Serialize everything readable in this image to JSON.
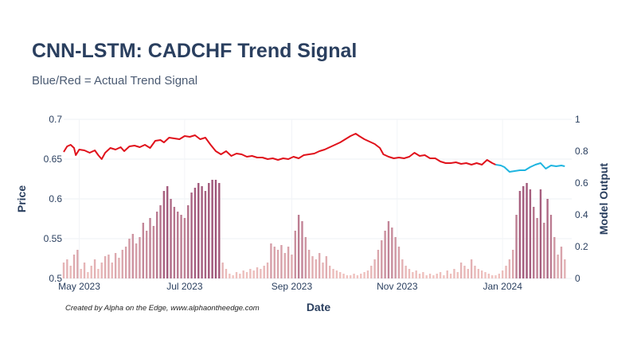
{
  "chart_data": {
    "type": "line",
    "title": "CNN-LSTM: CADCHF Trend Signal",
    "subtitle": "Blue/Red = Actual Trend Signal",
    "credit": "Created by Alpha on the Edge, www.alphaontheedge.com",
    "xlabel": "Date",
    "ylabel": "Price",
    "y2label": "Model Output",
    "x_range": [
      "2023-04-22",
      "2024-02-10"
    ],
    "ylim": [
      0.5,
      0.7
    ],
    "y2lim": [
      0,
      1
    ],
    "x_ticks": [
      {
        "date": "2023-05-01",
        "label": "May 2023"
      },
      {
        "date": "2023-07-01",
        "label": "Jul 2023"
      },
      {
        "date": "2023-09-01",
        "label": "Sep 2023"
      },
      {
        "date": "2023-11-01",
        "label": "Nov 2023"
      },
      {
        "date": "2024-01-01",
        "label": "Jan 2024"
      }
    ],
    "y_ticks": [
      "0.5",
      "0.55",
      "0.6",
      "0.65",
      "0.7"
    ],
    "y2_ticks": [
      "0",
      "0.2",
      "0.4",
      "0.6",
      "0.8",
      "1"
    ],
    "grid": true,
    "colors": {
      "down": "#e0111b",
      "up": "#1fb5e0",
      "bar_low": "#f3c7c2",
      "bar_high": "#9e5478",
      "text": "#2a3f5f"
    },
    "price_series": {
      "points": [
        [
          "2023-04-22",
          0.659
        ],
        [
          "2023-04-24",
          0.666
        ],
        [
          "2023-04-26",
          0.668
        ],
        [
          "2023-04-28",
          0.664
        ],
        [
          "2023-04-29",
          0.655
        ],
        [
          "2023-05-01",
          0.662
        ],
        [
          "2023-05-04",
          0.661
        ],
        [
          "2023-05-07",
          0.658
        ],
        [
          "2023-05-10",
          0.661
        ],
        [
          "2023-05-12",
          0.655
        ],
        [
          "2023-05-14",
          0.65
        ],
        [
          "2023-05-16",
          0.658
        ],
        [
          "2023-05-19",
          0.664
        ],
        [
          "2023-05-22",
          0.662
        ],
        [
          "2023-05-25",
          0.665
        ],
        [
          "2023-05-27",
          0.66
        ],
        [
          "2023-05-30",
          0.666
        ],
        [
          "2023-06-02",
          0.667
        ],
        [
          "2023-06-05",
          0.665
        ],
        [
          "2023-06-08",
          0.668
        ],
        [
          "2023-06-11",
          0.664
        ],
        [
          "2023-06-14",
          0.673
        ],
        [
          "2023-06-17",
          0.674
        ],
        [
          "2023-06-19",
          0.671
        ],
        [
          "2023-06-22",
          0.677
        ],
        [
          "2023-06-25",
          0.676
        ],
        [
          "2023-06-28",
          0.675
        ],
        [
          "2023-07-01",
          0.679
        ],
        [
          "2023-07-04",
          0.678
        ],
        [
          "2023-07-07",
          0.68
        ],
        [
          "2023-07-10",
          0.675
        ],
        [
          "2023-07-13",
          0.677
        ],
        [
          "2023-07-16",
          0.668
        ],
        [
          "2023-07-19",
          0.66
        ],
        [
          "2023-07-22",
          0.656
        ],
        [
          "2023-07-25",
          0.66
        ],
        [
          "2023-07-28",
          0.654
        ],
        [
          "2023-07-31",
          0.657
        ],
        [
          "2023-08-03",
          0.656
        ],
        [
          "2023-08-06",
          0.653
        ],
        [
          "2023-08-09",
          0.654
        ],
        [
          "2023-08-12",
          0.652
        ],
        [
          "2023-08-15",
          0.652
        ],
        [
          "2023-08-18",
          0.65
        ],
        [
          "2023-08-21",
          0.651
        ],
        [
          "2023-08-24",
          0.649
        ],
        [
          "2023-08-27",
          0.651
        ],
        [
          "2023-08-30",
          0.65
        ],
        [
          "2023-09-02",
          0.653
        ],
        [
          "2023-09-05",
          0.651
        ],
        [
          "2023-09-08",
          0.655
        ],
        [
          "2023-09-11",
          0.656
        ],
        [
          "2023-09-14",
          0.657
        ],
        [
          "2023-09-17",
          0.66
        ],
        [
          "2023-09-20",
          0.662
        ],
        [
          "2023-09-23",
          0.665
        ],
        [
          "2023-09-26",
          0.668
        ],
        [
          "2023-09-29",
          0.671
        ],
        [
          "2023-10-02",
          0.675
        ],
        [
          "2023-10-05",
          0.679
        ],
        [
          "2023-10-08",
          0.682
        ],
        [
          "2023-10-10",
          0.679
        ],
        [
          "2023-10-13",
          0.675
        ],
        [
          "2023-10-16",
          0.672
        ],
        [
          "2023-10-19",
          0.669
        ],
        [
          "2023-10-22",
          0.664
        ],
        [
          "2023-10-24",
          0.656
        ],
        [
          "2023-10-27",
          0.653
        ],
        [
          "2023-10-30",
          0.651
        ],
        [
          "2023-11-02",
          0.652
        ],
        [
          "2023-11-05",
          0.651
        ],
        [
          "2023-11-08",
          0.653
        ],
        [
          "2023-11-11",
          0.658
        ],
        [
          "2023-11-14",
          0.654
        ],
        [
          "2023-11-17",
          0.655
        ],
        [
          "2023-11-20",
          0.651
        ],
        [
          "2023-11-23",
          0.651
        ],
        [
          "2023-11-26",
          0.647
        ],
        [
          "2023-11-29",
          0.645
        ],
        [
          "2023-12-02",
          0.645
        ],
        [
          "2023-12-05",
          0.646
        ],
        [
          "2023-12-08",
          0.644
        ],
        [
          "2023-12-11",
          0.645
        ],
        [
          "2023-12-14",
          0.643
        ],
        [
          "2023-12-17",
          0.645
        ],
        [
          "2023-12-20",
          0.643
        ],
        [
          "2023-12-23",
          0.649
        ],
        [
          "2023-12-26",
          0.645
        ],
        [
          "2023-12-28",
          0.643
        ],
        [
          "2023-12-31",
          0.642
        ],
        [
          "2024-01-02",
          0.64
        ],
        [
          "2024-01-05",
          0.634
        ],
        [
          "2024-01-08",
          0.635
        ],
        [
          "2024-01-11",
          0.636
        ],
        [
          "2024-01-14",
          0.636
        ],
        [
          "2024-01-17",
          0.64
        ],
        [
          "2024-01-20",
          0.643
        ],
        [
          "2024-01-23",
          0.645
        ],
        [
          "2024-01-26",
          0.638
        ],
        [
          "2024-01-29",
          0.642
        ],
        [
          "2024-02-01",
          0.641
        ],
        [
          "2024-02-04",
          0.642
        ],
        [
          "2024-02-06",
          0.641
        ]
      ],
      "signal_change_date": "2023-12-30"
    },
    "model_output_bars": [
      [
        "2023-04-22",
        0.1
      ],
      [
        "2023-04-24",
        0.12
      ],
      [
        "2023-04-26",
        0.08
      ],
      [
        "2023-04-28",
        0.15
      ],
      [
        "2023-04-30",
        0.18
      ],
      [
        "2023-05-02",
        0.06
      ],
      [
        "2023-05-04",
        0.1
      ],
      [
        "2023-05-06",
        0.04
      ],
      [
        "2023-05-08",
        0.08
      ],
      [
        "2023-05-10",
        0.12
      ],
      [
        "2023-05-12",
        0.06
      ],
      [
        "2023-05-14",
        0.1
      ],
      [
        "2023-05-16",
        0.14
      ],
      [
        "2023-05-18",
        0.15
      ],
      [
        "2023-05-20",
        0.1
      ],
      [
        "2023-05-22",
        0.16
      ],
      [
        "2023-05-24",
        0.13
      ],
      [
        "2023-05-26",
        0.18
      ],
      [
        "2023-05-28",
        0.2
      ],
      [
        "2023-05-30",
        0.25
      ],
      [
        "2023-06-01",
        0.28
      ],
      [
        "2023-06-03",
        0.22
      ],
      [
        "2023-06-05",
        0.26
      ],
      [
        "2023-06-07",
        0.35
      ],
      [
        "2023-06-09",
        0.3
      ],
      [
        "2023-06-11",
        0.38
      ],
      [
        "2023-06-13",
        0.33
      ],
      [
        "2023-06-15",
        0.42
      ],
      [
        "2023-06-17",
        0.46
      ],
      [
        "2023-06-19",
        0.55
      ],
      [
        "2023-06-21",
        0.58
      ],
      [
        "2023-06-23",
        0.5
      ],
      [
        "2023-06-25",
        0.45
      ],
      [
        "2023-06-27",
        0.42
      ],
      [
        "2023-06-29",
        0.4
      ],
      [
        "2023-07-01",
        0.38
      ],
      [
        "2023-07-03",
        0.46
      ],
      [
        "2023-07-05",
        0.54
      ],
      [
        "2023-07-07",
        0.57
      ],
      [
        "2023-07-09",
        0.6
      ],
      [
        "2023-07-11",
        0.58
      ],
      [
        "2023-07-13",
        0.55
      ],
      [
        "2023-07-15",
        0.6
      ],
      [
        "2023-07-17",
        0.62
      ],
      [
        "2023-07-19",
        0.62
      ],
      [
        "2023-07-21",
        0.6
      ],
      [
        "2023-07-23",
        0.1
      ],
      [
        "2023-07-25",
        0.06
      ],
      [
        "2023-07-27",
        0.03
      ],
      [
        "2023-07-29",
        0.02
      ],
      [
        "2023-07-31",
        0.04
      ],
      [
        "2023-08-02",
        0.03
      ],
      [
        "2023-08-04",
        0.05
      ],
      [
        "2023-08-06",
        0.04
      ],
      [
        "2023-08-08",
        0.06
      ],
      [
        "2023-08-10",
        0.05
      ],
      [
        "2023-08-12",
        0.07
      ],
      [
        "2023-08-14",
        0.06
      ],
      [
        "2023-08-16",
        0.08
      ],
      [
        "2023-08-18",
        0.1
      ],
      [
        "2023-08-20",
        0.22
      ],
      [
        "2023-08-22",
        0.2
      ],
      [
        "2023-08-24",
        0.18
      ],
      [
        "2023-08-26",
        0.21
      ],
      [
        "2023-08-28",
        0.16
      ],
      [
        "2023-08-30",
        0.2
      ],
      [
        "2023-09-01",
        0.15
      ],
      [
        "2023-09-03",
        0.3
      ],
      [
        "2023-09-05",
        0.4
      ],
      [
        "2023-09-07",
        0.36
      ],
      [
        "2023-09-09",
        0.26
      ],
      [
        "2023-09-11",
        0.18
      ],
      [
        "2023-09-13",
        0.14
      ],
      [
        "2023-09-15",
        0.12
      ],
      [
        "2023-09-17",
        0.16
      ],
      [
        "2023-09-19",
        0.1
      ],
      [
        "2023-09-21",
        0.14
      ],
      [
        "2023-09-23",
        0.08
      ],
      [
        "2023-09-25",
        0.06
      ],
      [
        "2023-09-27",
        0.05
      ],
      [
        "2023-09-29",
        0.04
      ],
      [
        "2023-10-01",
        0.03
      ],
      [
        "2023-10-03",
        0.02
      ],
      [
        "2023-10-05",
        0.02
      ],
      [
        "2023-10-07",
        0.03
      ],
      [
        "2023-10-09",
        0.02
      ],
      [
        "2023-10-11",
        0.03
      ],
      [
        "2023-10-13",
        0.04
      ],
      [
        "2023-10-15",
        0.05
      ],
      [
        "2023-10-17",
        0.08
      ],
      [
        "2023-10-19",
        0.12
      ],
      [
        "2023-10-21",
        0.18
      ],
      [
        "2023-10-23",
        0.24
      ],
      [
        "2023-10-25",
        0.3
      ],
      [
        "2023-10-27",
        0.36
      ],
      [
        "2023-10-29",
        0.32
      ],
      [
        "2023-10-31",
        0.26
      ],
      [
        "2023-11-02",
        0.2
      ],
      [
        "2023-11-04",
        0.12
      ],
      [
        "2023-11-06",
        0.08
      ],
      [
        "2023-11-08",
        0.06
      ],
      [
        "2023-11-10",
        0.04
      ],
      [
        "2023-11-12",
        0.05
      ],
      [
        "2023-11-14",
        0.03
      ],
      [
        "2023-11-16",
        0.04
      ],
      [
        "2023-11-18",
        0.02
      ],
      [
        "2023-11-20",
        0.03
      ],
      [
        "2023-11-22",
        0.02
      ],
      [
        "2023-11-24",
        0.03
      ],
      [
        "2023-11-26",
        0.04
      ],
      [
        "2023-11-28",
        0.02
      ],
      [
        "2023-11-30",
        0.05
      ],
      [
        "2023-12-02",
        0.03
      ],
      [
        "2023-12-04",
        0.06
      ],
      [
        "2023-12-06",
        0.04
      ],
      [
        "2023-12-08",
        0.1
      ],
      [
        "2023-12-10",
        0.08
      ],
      [
        "2023-12-12",
        0.06
      ],
      [
        "2023-12-14",
        0.12
      ],
      [
        "2023-12-16",
        0.08
      ],
      [
        "2023-12-18",
        0.06
      ],
      [
        "2023-12-20",
        0.05
      ],
      [
        "2023-12-22",
        0.04
      ],
      [
        "2023-12-24",
        0.03
      ],
      [
        "2023-12-26",
        0.02
      ],
      [
        "2023-12-28",
        0.02
      ],
      [
        "2023-12-30",
        0.03
      ],
      [
        "2024-01-01",
        0.05
      ],
      [
        "2024-01-03",
        0.08
      ],
      [
        "2024-01-05",
        0.12
      ],
      [
        "2024-01-07",
        0.18
      ],
      [
        "2024-01-09",
        0.4
      ],
      [
        "2024-01-11",
        0.55
      ],
      [
        "2024-01-13",
        0.58
      ],
      [
        "2024-01-15",
        0.6
      ],
      [
        "2024-01-17",
        0.56
      ],
      [
        "2024-01-19",
        0.45
      ],
      [
        "2024-01-21",
        0.38
      ],
      [
        "2024-01-23",
        0.56
      ],
      [
        "2024-01-25",
        0.35
      ],
      [
        "2024-01-27",
        0.5
      ],
      [
        "2024-01-29",
        0.4
      ],
      [
        "2024-01-31",
        0.26
      ],
      [
        "2024-02-02",
        0.15
      ],
      [
        "2024-02-04",
        0.2
      ],
      [
        "2024-02-06",
        0.12
      ]
    ]
  }
}
